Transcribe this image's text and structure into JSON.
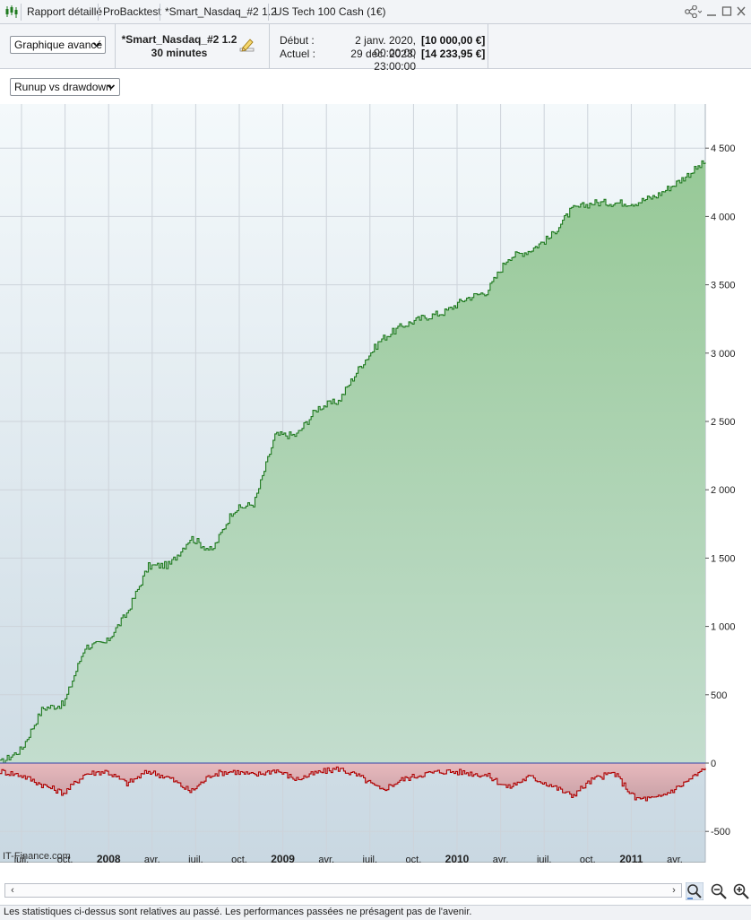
{
  "tabs": [
    {
      "label": "Rapport détaillé"
    },
    {
      "label": "ProBacktest"
    },
    {
      "label": "*Smart_Nasdaq_#2 1.2"
    },
    {
      "label": "US Tech 100 Cash (1€)"
    }
  ],
  "header": {
    "view_select": "Graphique avancé",
    "strategy_name": "*Smart_Nasdaq_#2 1.2",
    "timeframe": "30 minutes",
    "start_label": "Début :",
    "start_date": "2 janv. 2020, 00:00:00",
    "start_value": "[10 000,00 €]",
    "current_label": "Actuel :",
    "current_date": "29 déc. 2023, 23:00:00",
    "current_value": "[14 233,95 €]"
  },
  "chart_selector": "Runup vs drawdown",
  "chart_data": {
    "type": "area",
    "x_tick_labels": [
      "juil.",
      "oct.",
      "2008",
      "avr.",
      "juil.",
      "oct.",
      "2009",
      "avr.",
      "juil.",
      "oct.",
      "2010",
      "avr.",
      "juil.",
      "oct.",
      "2011",
      "avr."
    ],
    "y_tick_labels": [
      "4 500",
      "4 000",
      "3 500",
      "3 000",
      "2 500",
      "2 000",
      "1 500",
      "1 000",
      "500",
      "0",
      "-500"
    ],
    "ylim": [
      -700,
      4900
    ],
    "watermark": "IT-Finance.com",
    "grid": true,
    "series": [
      {
        "color": "#1f7a1f",
        "fill": "#a6d1a6",
        "x": [
          0,
          0.03,
          0.06,
          0.09,
          0.12,
          0.15,
          0.18,
          0.21,
          0.24,
          0.27,
          0.3,
          0.33,
          0.36,
          0.39,
          0.42,
          0.45,
          0.48,
          0.51,
          0.54,
          0.57,
          0.6,
          0.63,
          0.66,
          0.69,
          0.72,
          0.75,
          0.78,
          0.81,
          0.84,
          0.87,
          0.9,
          0.93,
          0.96,
          1.0
        ],
        "values": [
          0,
          100,
          400,
          430,
          850,
          880,
          1100,
          1440,
          1450,
          1650,
          1550,
          1850,
          1900,
          2400,
          2400,
          2600,
          2650,
          2900,
          3100,
          3200,
          3260,
          3300,
          3400,
          3450,
          3700,
          3750,
          3850,
          4050,
          4100,
          4100,
          4100,
          4150,
          4250,
          4400
        ]
      },
      {
        "color": "#b00000",
        "fill": "#e3b5b5",
        "x": [
          0,
          0.03,
          0.06,
          0.09,
          0.12,
          0.15,
          0.18,
          0.21,
          0.24,
          0.27,
          0.3,
          0.33,
          0.36,
          0.39,
          0.42,
          0.45,
          0.48,
          0.51,
          0.54,
          0.57,
          0.6,
          0.63,
          0.66,
          0.69,
          0.72,
          0.75,
          0.78,
          0.81,
          0.84,
          0.87,
          0.9,
          0.93,
          0.96,
          1.0
        ],
        "values": [
          -60,
          -90,
          -160,
          -220,
          -80,
          -60,
          -150,
          -60,
          -110,
          -210,
          -80,
          -60,
          -90,
          -50,
          -120,
          -70,
          -40,
          -100,
          -200,
          -120,
          -80,
          -60,
          -70,
          -90,
          -180,
          -100,
          -160,
          -240,
          -120,
          -70,
          -260,
          -260,
          -180,
          -40
        ]
      }
    ]
  },
  "colors": {
    "accent": "#1f7a1f",
    "negative": "#b00000",
    "grid": "#cdd3da"
  },
  "footer_text": "Les statistiques ci-dessus sont relatives au passé. Les performances passées ne présagent pas de l'avenir."
}
